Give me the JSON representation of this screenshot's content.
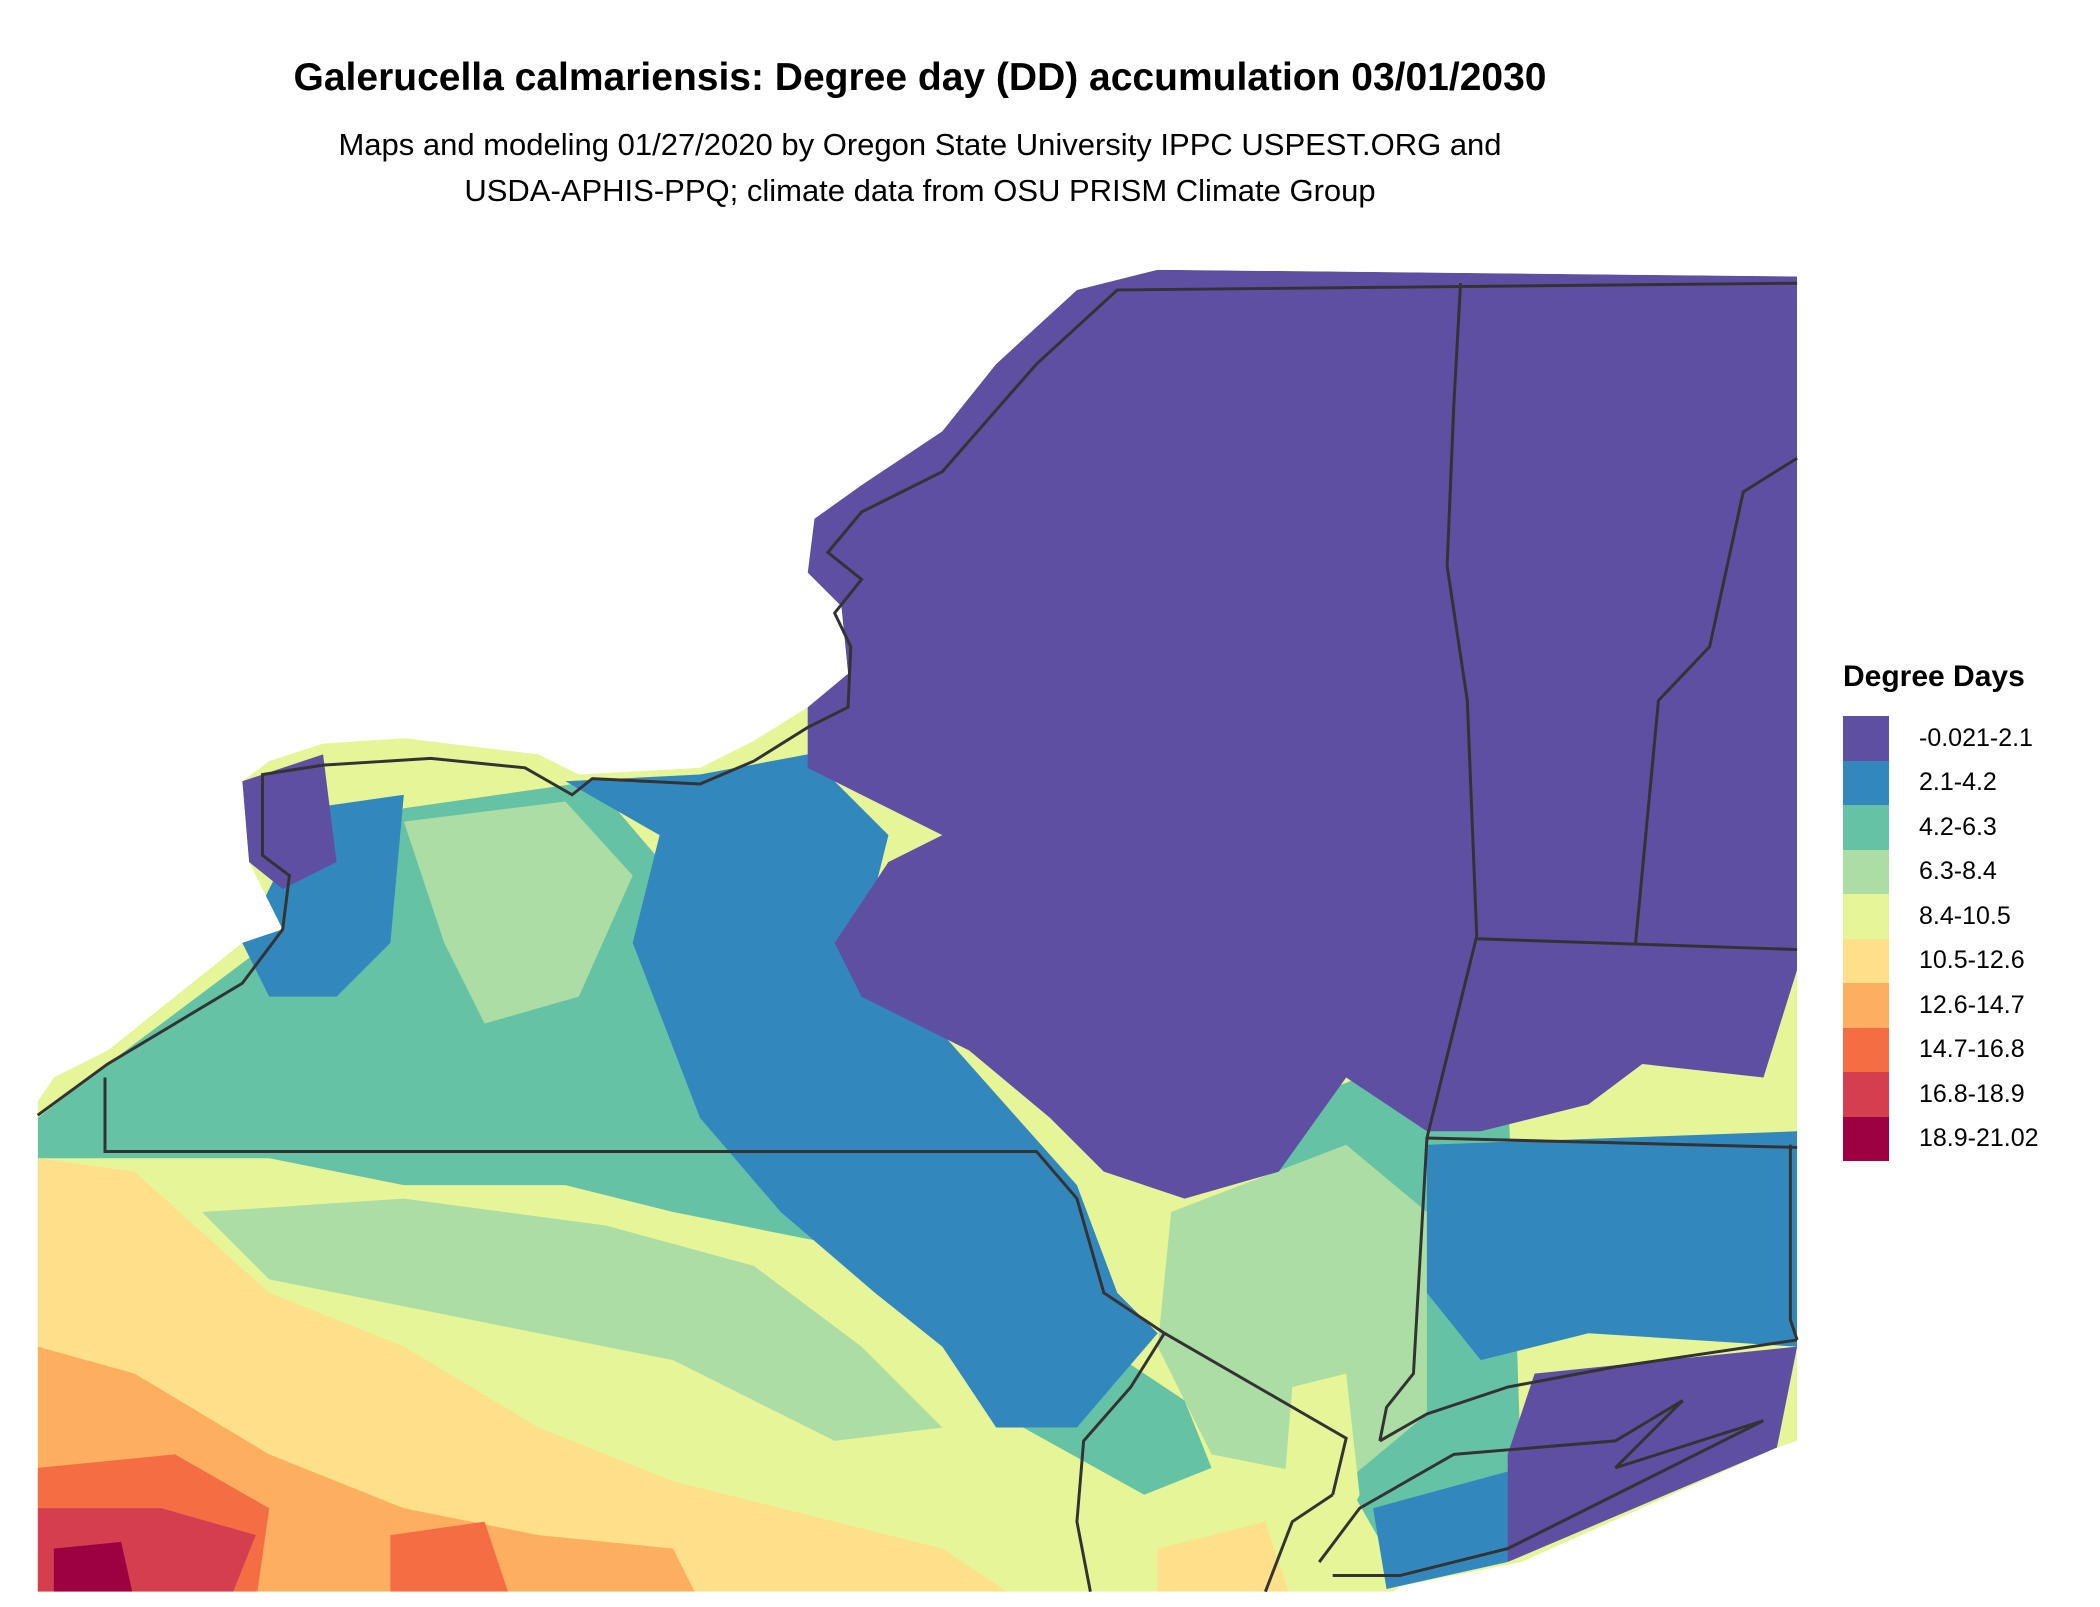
{
  "title": "Galerucella calmariensis: Degree day (DD) accumulation 03/01/2030",
  "subtitle_line1": "Maps and modeling 01/27/2020 by Oregon State University IPPC USPEST.ORG and",
  "subtitle_line2": "USDA-APHIS-PPQ; climate data from OSU PRISM Climate Group",
  "legend": {
    "title": "Degree Days",
    "items": [
      {
        "label": "-0.021-2.1",
        "color": "#5E4FA2"
      },
      {
        "label": "2.1-4.2",
        "color": "#3288BD"
      },
      {
        "label": "4.2-6.3",
        "color": "#66C2A5"
      },
      {
        "label": "6.3-8.4",
        "color": "#ABDDA4"
      },
      {
        "label": "8.4-10.5",
        "color": "#E6F598"
      },
      {
        "label": "10.5-12.6",
        "color": "#FEE08B"
      },
      {
        "label": "12.6-14.7",
        "color": "#FDAE61"
      },
      {
        "label": "14.7-16.8",
        "color": "#F46D43"
      },
      {
        "label": "16.8-18.9",
        "color": "#D53E4F"
      },
      {
        "label": "18.9-21.02",
        "color": "#9E0142"
      }
    ]
  }
}
